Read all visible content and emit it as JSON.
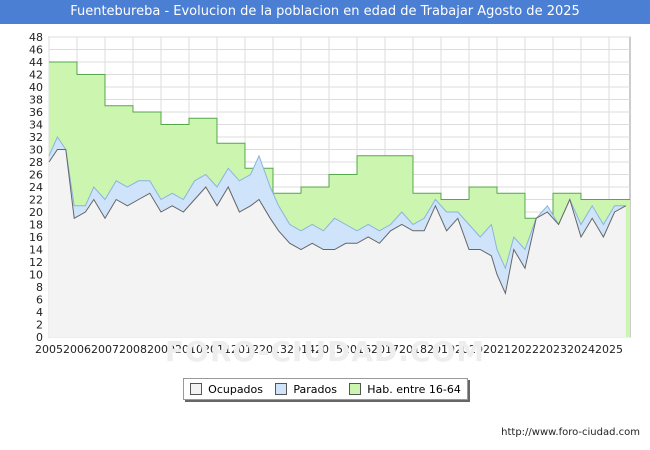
{
  "header": {
    "title": "Fuentebureba - Evolucion de la poblacion en edad de Trabajar Agosto de 2025"
  },
  "footer": {
    "url": "http://www.foro-ciudad.com"
  },
  "watermark": "FORO-CIUDAD.COM",
  "legend": {
    "ocupados": "Ocupados",
    "parados": "Parados",
    "hab": "Hab. entre 16-64"
  },
  "colors": {
    "hab_fill": "#ccf5b0",
    "hab_line": "#55a84a",
    "parados_fill": "#cfe4fa",
    "parados_line": "#88b4e0",
    "ocupados_fill": "#f3f3f3",
    "ocupados_line": "#666666",
    "title_bg": "#4a7fd4",
    "grid": "#dddddd"
  },
  "chart_data": {
    "type": "area",
    "title": "Fuentebureba - Evolucion de la poblacion en edad de Trabajar Agosto de 2025",
    "ylim": [
      0,
      48
    ],
    "xlim": [
      2005,
      2025.75
    ],
    "grid": true,
    "legend_position": "bottom",
    "y_ticks": [
      "0",
      "2",
      "4",
      "6",
      "8",
      "10",
      "12",
      "14",
      "16",
      "18",
      "20",
      "22",
      "24",
      "26",
      "28",
      "30",
      "32",
      "34",
      "36",
      "38",
      "40",
      "42",
      "44",
      "46",
      "48"
    ],
    "x_ticks": [
      "2005",
      "2006",
      "2007",
      "2008",
      "2009",
      "2010",
      "2011",
      "2012",
      "2013",
      "2014",
      "2015",
      "2016",
      "2017",
      "2018",
      "2019",
      "2020",
      "2021",
      "2022",
      "2023",
      "2024",
      "2025"
    ],
    "series": [
      {
        "name": "Hab. entre 16-64",
        "step": true,
        "points": [
          [
            2005,
            44
          ],
          [
            2006,
            42
          ],
          [
            2007,
            37
          ],
          [
            2008,
            36
          ],
          [
            2009,
            34
          ],
          [
            2010,
            35
          ],
          [
            2011,
            31
          ],
          [
            2012,
            27
          ],
          [
            2013,
            23
          ],
          [
            2014,
            24
          ],
          [
            2015,
            26
          ],
          [
            2016,
            29
          ],
          [
            2017,
            29
          ],
          [
            2018,
            23
          ],
          [
            2019,
            22
          ],
          [
            2020,
            24
          ],
          [
            2021,
            23
          ],
          [
            2022,
            19
          ],
          [
            2023,
            23
          ],
          [
            2024,
            22
          ],
          [
            2025,
            22
          ]
        ]
      },
      {
        "name": "Parados",
        "points": [
          [
            2005.0,
            29
          ],
          [
            2005.3,
            32
          ],
          [
            2005.6,
            30
          ],
          [
            2005.9,
            21
          ],
          [
            2006.3,
            21
          ],
          [
            2006.6,
            24
          ],
          [
            2007.0,
            22
          ],
          [
            2007.4,
            25
          ],
          [
            2007.8,
            24
          ],
          [
            2008.2,
            25
          ],
          [
            2008.6,
            25
          ],
          [
            2009.0,
            22
          ],
          [
            2009.4,
            23
          ],
          [
            2009.8,
            22
          ],
          [
            2010.2,
            25
          ],
          [
            2010.6,
            26
          ],
          [
            2011.0,
            24
          ],
          [
            2011.4,
            27
          ],
          [
            2011.8,
            25
          ],
          [
            2012.2,
            26
          ],
          [
            2012.5,
            29
          ],
          [
            2012.9,
            24
          ],
          [
            2013.2,
            21
          ],
          [
            2013.6,
            18
          ],
          [
            2014.0,
            17
          ],
          [
            2014.4,
            18
          ],
          [
            2014.8,
            17
          ],
          [
            2015.2,
            19
          ],
          [
            2015.6,
            18
          ],
          [
            2016.0,
            17
          ],
          [
            2016.4,
            18
          ],
          [
            2016.8,
            17
          ],
          [
            2017.2,
            18
          ],
          [
            2017.6,
            20
          ],
          [
            2018.0,
            18
          ],
          [
            2018.4,
            19
          ],
          [
            2018.8,
            22
          ],
          [
            2019.2,
            20
          ],
          [
            2019.6,
            20
          ],
          [
            2020.0,
            18
          ],
          [
            2020.4,
            16
          ],
          [
            2020.8,
            18
          ],
          [
            2021.0,
            14
          ],
          [
            2021.3,
            11
          ],
          [
            2021.6,
            16
          ],
          [
            2022.0,
            14
          ],
          [
            2022.4,
            19
          ],
          [
            2022.8,
            21
          ],
          [
            2023.2,
            18
          ],
          [
            2023.6,
            22
          ],
          [
            2024.0,
            18
          ],
          [
            2024.4,
            21
          ],
          [
            2024.8,
            18
          ],
          [
            2025.2,
            21
          ],
          [
            2025.6,
            21
          ]
        ]
      },
      {
        "name": "Ocupados",
        "points": [
          [
            2005.0,
            28
          ],
          [
            2005.3,
            30
          ],
          [
            2005.6,
            30
          ],
          [
            2005.9,
            19
          ],
          [
            2006.3,
            20
          ],
          [
            2006.6,
            22
          ],
          [
            2007.0,
            19
          ],
          [
            2007.4,
            22
          ],
          [
            2007.8,
            21
          ],
          [
            2008.2,
            22
          ],
          [
            2008.6,
            23
          ],
          [
            2009.0,
            20
          ],
          [
            2009.4,
            21
          ],
          [
            2009.8,
            20
          ],
          [
            2010.2,
            22
          ],
          [
            2010.6,
            24
          ],
          [
            2011.0,
            21
          ],
          [
            2011.4,
            24
          ],
          [
            2011.8,
            20
          ],
          [
            2012.2,
            21
          ],
          [
            2012.5,
            22
          ],
          [
            2012.9,
            19
          ],
          [
            2013.2,
            17
          ],
          [
            2013.6,
            15
          ],
          [
            2014.0,
            14
          ],
          [
            2014.4,
            15
          ],
          [
            2014.8,
            14
          ],
          [
            2015.2,
            14
          ],
          [
            2015.6,
            15
          ],
          [
            2016.0,
            15
          ],
          [
            2016.4,
            16
          ],
          [
            2016.8,
            15
          ],
          [
            2017.2,
            17
          ],
          [
            2017.6,
            18
          ],
          [
            2018.0,
            17
          ],
          [
            2018.4,
            17
          ],
          [
            2018.8,
            21
          ],
          [
            2019.2,
            17
          ],
          [
            2019.6,
            19
          ],
          [
            2020.0,
            14
          ],
          [
            2020.4,
            14
          ],
          [
            2020.8,
            13
          ],
          [
            2021.0,
            10
          ],
          [
            2021.3,
            7
          ],
          [
            2021.6,
            14
          ],
          [
            2022.0,
            11
          ],
          [
            2022.4,
            19
          ],
          [
            2022.8,
            20
          ],
          [
            2023.2,
            18
          ],
          [
            2023.6,
            22
          ],
          [
            2024.0,
            16
          ],
          [
            2024.4,
            19
          ],
          [
            2024.8,
            16
          ],
          [
            2025.2,
            20
          ],
          [
            2025.6,
            21
          ]
        ]
      }
    ]
  }
}
